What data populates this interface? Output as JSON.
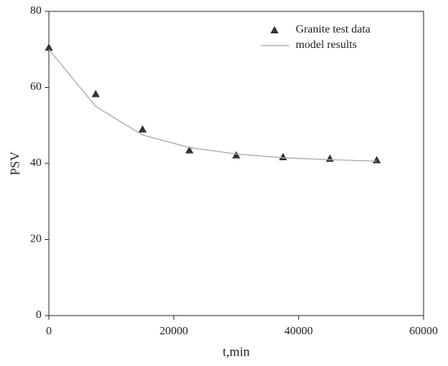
{
  "chart_data": {
    "type": "scatter",
    "x_label": "t,min",
    "y_label": "PSV",
    "x": [
      0,
      7500,
      15000,
      22500,
      30000,
      37500,
      45000,
      52500
    ],
    "series": [
      {
        "name": "Granite test data",
        "color": "#333333",
        "mode": "markers",
        "marker": "triangle",
        "values": [
          70.5,
          58.3,
          49,
          43.5,
          42.2,
          41.7,
          41.3,
          40.9
        ]
      },
      {
        "name": "model results",
        "color": "#aaaaaa",
        "mode": "line",
        "values": [
          70,
          55,
          47.5,
          44.2,
          42.5,
          41.5,
          41,
          40.6
        ]
      }
    ],
    "xlim": [
      0,
      60000
    ],
    "xticks": [
      0,
      20000,
      40000,
      60000
    ],
    "ylim": [
      0,
      80
    ],
    "yticks": [
      0,
      20,
      40,
      60,
      80
    ],
    "grid": false,
    "legend": "upper right"
  }
}
